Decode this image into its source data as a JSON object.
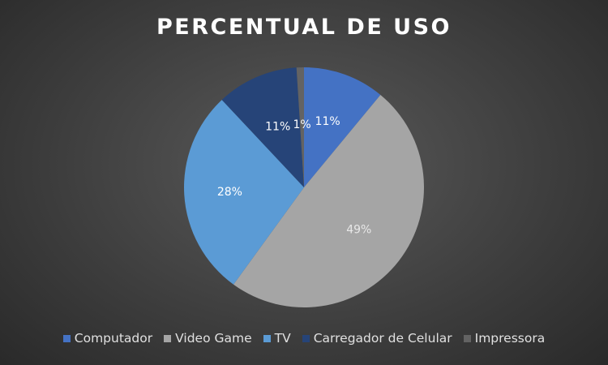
{
  "chart_data": {
    "type": "pie",
    "title": "PERCENTUAL DE USO",
    "categories": [
      "Computador",
      "Video Game",
      "TV",
      "Carregador de Celular",
      "Impressora"
    ],
    "values": [
      11,
      49,
      28,
      11,
      1
    ],
    "data_labels": [
      "11%",
      "49%",
      "28%",
      "11%",
      "1%"
    ],
    "colors": [
      "#4472c4",
      "#a5a5a5",
      "#5b9bd5",
      "#264478",
      "#636363"
    ],
    "label_colors": [
      "#ffffff",
      "#e8e8e8",
      "#ffffff",
      "#ffffff",
      "#ffffff"
    ],
    "legend_position": "bottom",
    "start_angle_deg": 0,
    "direction": "clockwise"
  }
}
